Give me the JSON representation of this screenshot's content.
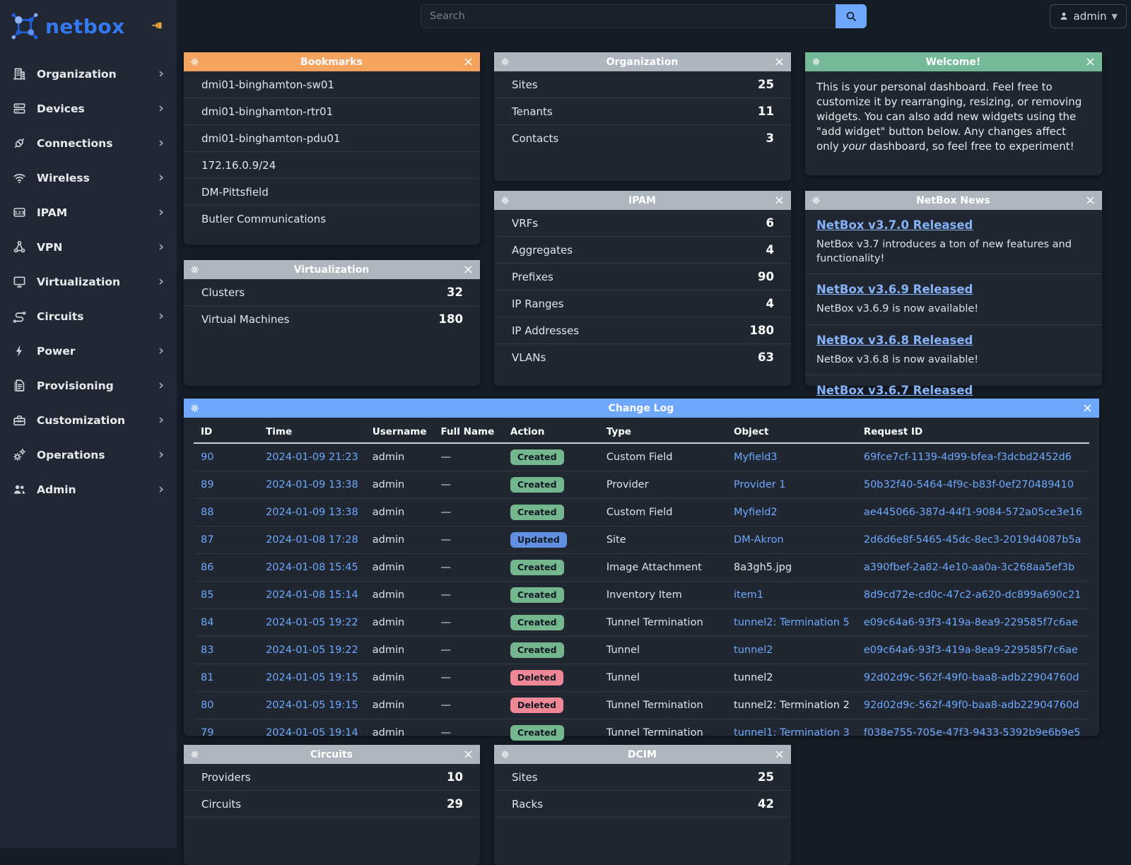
{
  "brand": {
    "name": "netbox"
  },
  "topbar": {
    "search_placeholder": "Search",
    "user": "admin"
  },
  "colors": {
    "brand_blue": "#3478f2",
    "pin_gold": "#e8a33d",
    "link": "#6ea8fe",
    "header_orange": "#f5a45f",
    "header_gray": "#aeb5bd",
    "header_green": "#74b998",
    "header_blue": "#6ea8fe",
    "badge_created": "#74b78f",
    "badge_updated": "#6190e2",
    "badge_deleted": "#ef8796"
  },
  "sidebar": {
    "items": [
      {
        "label": "Organization",
        "icon": "building"
      },
      {
        "label": "Devices",
        "icon": "server"
      },
      {
        "label": "Connections",
        "icon": "plug"
      },
      {
        "label": "Wireless",
        "icon": "wifi"
      },
      {
        "label": "IPAM",
        "icon": "numbers"
      },
      {
        "label": "VPN",
        "icon": "nodes"
      },
      {
        "label": "Virtualization",
        "icon": "monitor"
      },
      {
        "label": "Circuits",
        "icon": "circuit"
      },
      {
        "label": "Power",
        "icon": "bolt"
      },
      {
        "label": "Provisioning",
        "icon": "document"
      },
      {
        "label": "Customization",
        "icon": "toolbox"
      },
      {
        "label": "Operations",
        "icon": "gears"
      },
      {
        "label": "Admin",
        "icon": "users"
      }
    ]
  },
  "widgets": {
    "bookmarks": {
      "title": "Bookmarks",
      "items": [
        "dmi01-binghamton-sw01",
        "dmi01-binghamton-rtr01",
        "dmi01-binghamton-pdu01",
        "172.16.0.9/24",
        "DM-Pittsfield",
        "Butler Communications"
      ]
    },
    "organization": {
      "title": "Organization",
      "stats": [
        {
          "label": "Sites",
          "value": "25"
        },
        {
          "label": "Tenants",
          "value": "11"
        },
        {
          "label": "Contacts",
          "value": "3"
        }
      ]
    },
    "welcome": {
      "title": "Welcome!",
      "text_1": "This is your personal dashboard. Feel free to customize it by rearranging, resizing, or removing widgets. You can also add new widgets using the \"add widget\" button below. Any changes affect only ",
      "italic_word": "your",
      "text_2": " dashboard, so feel free to experiment!"
    },
    "virtualization": {
      "title": "Virtualization",
      "stats": [
        {
          "label": "Clusters",
          "value": "32"
        },
        {
          "label": "Virtual Machines",
          "value": "180"
        }
      ]
    },
    "ipam": {
      "title": "IPAM",
      "stats": [
        {
          "label": "VRFs",
          "value": "6"
        },
        {
          "label": "Aggregates",
          "value": "4"
        },
        {
          "label": "Prefixes",
          "value": "90"
        },
        {
          "label": "IP Ranges",
          "value": "4"
        },
        {
          "label": "IP Addresses",
          "value": "180"
        },
        {
          "label": "VLANs",
          "value": "63"
        }
      ]
    },
    "news": {
      "title": "NetBox News",
      "items": [
        {
          "headline": "NetBox v3.7.0 Released",
          "desc": "NetBox v3.7 introduces a ton of new features and functionality!"
        },
        {
          "headline": "NetBox v3.6.9 Released",
          "desc": "NetBox v3.6.9 is now available!"
        },
        {
          "headline": "NetBox v3.6.8 Released",
          "desc": "NetBox v3.6.8 is now available!"
        },
        {
          "headline": "NetBox v3.6.7 Released",
          "desc": ""
        }
      ]
    },
    "changelog": {
      "title": "Change Log",
      "columns": [
        "ID",
        "Time",
        "Username",
        "Full Name",
        "Action",
        "Type",
        "Object",
        "Request ID"
      ],
      "rows": [
        {
          "id": "90",
          "time": "2024-01-09 21:23",
          "username": "admin",
          "full_name": "—",
          "action": "Created",
          "action_kind": "created",
          "type": "Custom Field",
          "object": "Myfield3",
          "object_kind": "link",
          "request_id": "69fce7cf-1139-4d99-bfea-f3dcbd2452d6"
        },
        {
          "id": "89",
          "time": "2024-01-09 13:38",
          "username": "admin",
          "full_name": "—",
          "action": "Created",
          "action_kind": "created",
          "type": "Provider",
          "object": "Provider 1",
          "object_kind": "link",
          "request_id": "50b32f40-5464-4f9c-b83f-0ef270489410"
        },
        {
          "id": "88",
          "time": "2024-01-09 13:38",
          "username": "admin",
          "full_name": "—",
          "action": "Created",
          "action_kind": "created",
          "type": "Custom Field",
          "object": "Myfield2",
          "object_kind": "link",
          "request_id": "ae445066-387d-44f1-9084-572a05ce3e16"
        },
        {
          "id": "87",
          "time": "2024-01-08 17:28",
          "username": "admin",
          "full_name": "—",
          "action": "Updated",
          "action_kind": "updated",
          "type": "Site",
          "object": "DM-Akron",
          "object_kind": "link",
          "request_id": "2d6d6e8f-5465-45dc-8ec3-2019d4087b5a"
        },
        {
          "id": "86",
          "time": "2024-01-08 15:45",
          "username": "admin",
          "full_name": "—",
          "action": "Created",
          "action_kind": "created",
          "type": "Image Attachment",
          "object": "8a3gh5.jpg",
          "object_kind": "plain",
          "request_id": "a390fbef-2a82-4e10-aa0a-3c268aa5ef3b"
        },
        {
          "id": "85",
          "time": "2024-01-08 15:14",
          "username": "admin",
          "full_name": "—",
          "action": "Created",
          "action_kind": "created",
          "type": "Inventory Item",
          "object": "item1",
          "object_kind": "link",
          "request_id": "8d9cd72e-cd0c-47c2-a620-dc899a690c21"
        },
        {
          "id": "84",
          "time": "2024-01-05 19:22",
          "username": "admin",
          "full_name": "—",
          "action": "Created",
          "action_kind": "created",
          "type": "Tunnel Termination",
          "object": "tunnel2: Termination 5",
          "object_kind": "link",
          "request_id": "e09c64a6-93f3-419a-8ea9-229585f7c6ae"
        },
        {
          "id": "83",
          "time": "2024-01-05 19:22",
          "username": "admin",
          "full_name": "—",
          "action": "Created",
          "action_kind": "created",
          "type": "Tunnel",
          "object": "tunnel2",
          "object_kind": "link",
          "request_id": "e09c64a6-93f3-419a-8ea9-229585f7c6ae"
        },
        {
          "id": "81",
          "time": "2024-01-05 19:15",
          "username": "admin",
          "full_name": "—",
          "action": "Deleted",
          "action_kind": "deleted",
          "type": "Tunnel",
          "object": "tunnel2",
          "object_kind": "plain",
          "request_id": "92d02d9c-562f-49f0-baa8-adb22904760d"
        },
        {
          "id": "80",
          "time": "2024-01-05 19:15",
          "username": "admin",
          "full_name": "—",
          "action": "Deleted",
          "action_kind": "deleted",
          "type": "Tunnel Termination",
          "object": "tunnel2: Termination 2",
          "object_kind": "plain",
          "request_id": "92d02d9c-562f-49f0-baa8-adb22904760d"
        },
        {
          "id": "79",
          "time": "2024-01-05 19:14",
          "username": "admin",
          "full_name": "—",
          "action": "Created",
          "action_kind": "created",
          "type": "Tunnel Termination",
          "object": "tunnel1: Termination 3",
          "object_kind": "link",
          "request_id": "f038e755-705e-47f3-9433-5392b9e6b9e5"
        }
      ]
    },
    "circuits": {
      "title": "Circuits",
      "stats": [
        {
          "label": "Providers",
          "value": "10"
        },
        {
          "label": "Circuits",
          "value": "29"
        }
      ]
    },
    "dcim": {
      "title": "DCIM",
      "stats": [
        {
          "label": "Sites",
          "value": "25"
        },
        {
          "label": "Racks",
          "value": "42"
        }
      ]
    }
  }
}
